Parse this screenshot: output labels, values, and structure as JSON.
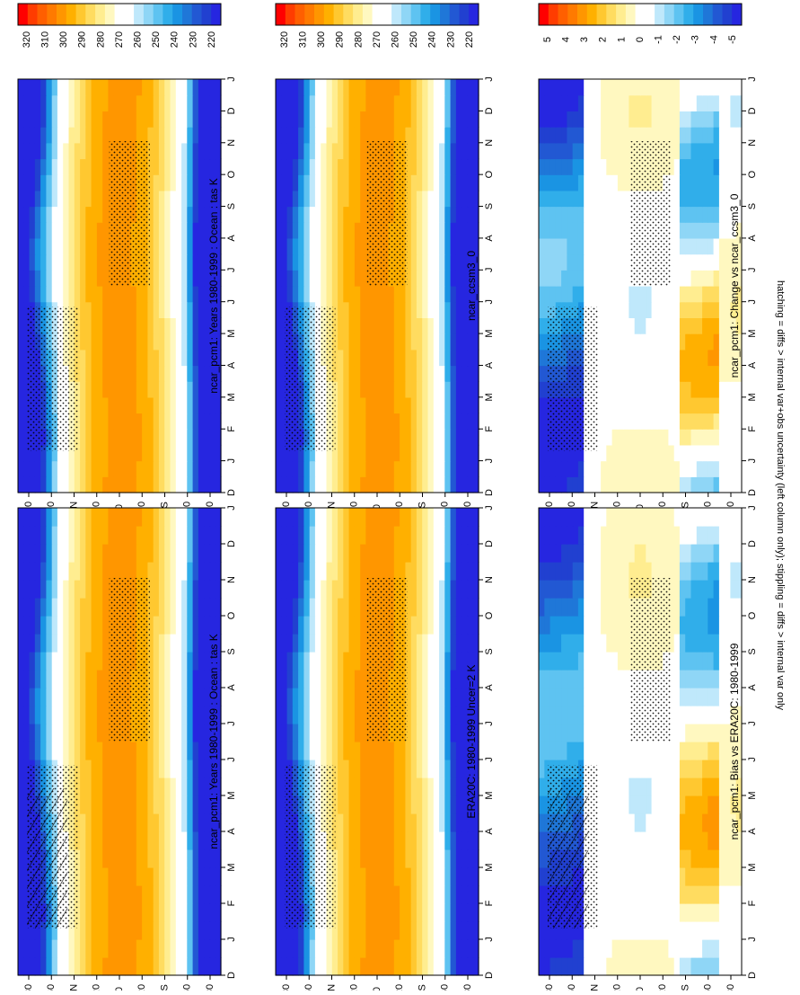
{
  "footnote": "hatching = diffs > internal var+obs uncertainty (left column only); stippling = diffs > internal var only",
  "abs_scale": {
    "labels": [
      "320",
      "310",
      "300",
      "290",
      "280",
      "270",
      "260",
      "250",
      "240",
      "230",
      "220"
    ],
    "colors": [
      "#ff0000",
      "#ff3c00",
      "#ff5f00",
      "#ff7a00",
      "#ff9600",
      "#ffb000",
      "#ffc830",
      "#ffdc60",
      "#ffed90",
      "#fff8c0",
      "#ffffff",
      "#ffffff",
      "#bfe8fb",
      "#8fd6f6",
      "#5ec3f1",
      "#30aeea",
      "#1a94e3",
      "#1f77d8",
      "#2258d3",
      "#2140d0",
      "#2626e0"
    ]
  },
  "diff_scale": {
    "labels": [
      "5",
      "4",
      "3",
      "2",
      "1",
      "0",
      "-1",
      "-2",
      "-3",
      "-4",
      "-5"
    ],
    "colors": [
      "#ff0000",
      "#ff3c00",
      "#ff5f00",
      "#ff7a00",
      "#ff9600",
      "#ffb000",
      "#ffc830",
      "#ffdc60",
      "#ffed90",
      "#fff8c0",
      "#ffffff",
      "#ffffff",
      "#bfe8fb",
      "#8fd6f6",
      "#5ec3f1",
      "#30aeea",
      "#1a94e3",
      "#1f77d8",
      "#2258d3",
      "#2140d0",
      "#2626e0"
    ]
  },
  "month_labels": [
    "D",
    "J",
    "F",
    "M",
    "A",
    "M",
    "J",
    "J",
    "A",
    "S",
    "O",
    "N",
    "D",
    "J"
  ],
  "lat_labels": [
    "80",
    "60",
    "°N",
    "20",
    "0",
    "20",
    "°S",
    "60",
    "80"
  ],
  "chart_data": [
    {
      "type": "heatmap",
      "title": "ncar_pcm1: Years 1980-1999 : Ocean : tas K",
      "x": [
        "D",
        "J",
        "F",
        "M",
        "A",
        "M",
        "J",
        "J",
        "A",
        "S",
        "O",
        "N",
        "D",
        "J"
      ],
      "y": [
        "80N",
        "60N",
        "40N",
        "20N",
        "0",
        "20S",
        "40S",
        "60S",
        "80S"
      ],
      "zlim": [
        220,
        320
      ],
      "units": "K",
      "colormap": "abs"
    },
    {
      "type": "heatmap",
      "title": "ncar_pcm1: Years 1980-1999 : Ocean : tas K",
      "x": [
        "D",
        "J",
        "F",
        "M",
        "A",
        "M",
        "J",
        "J",
        "A",
        "S",
        "O",
        "N",
        "D",
        "J"
      ],
      "y": [
        "80N",
        "60N",
        "40N",
        "20N",
        "0",
        "20S",
        "40S",
        "60S",
        "80S"
      ],
      "zlim": [
        220,
        320
      ],
      "units": "K",
      "colormap": "abs"
    },
    {
      "type": "heatmap",
      "title": "ERA20C: 1980-1999 Uncer=2 K",
      "x": [
        "D",
        "J",
        "F",
        "M",
        "A",
        "M",
        "J",
        "J",
        "A",
        "S",
        "O",
        "N",
        "D",
        "J"
      ],
      "y": [
        "80N",
        "60N",
        "40N",
        "20N",
        "0",
        "20S",
        "40S",
        "60S",
        "80S"
      ],
      "zlim": [
        220,
        320
      ],
      "units": "K",
      "colormap": "abs"
    },
    {
      "type": "heatmap",
      "title": "ncar_ccsm3_0",
      "x": [
        "D",
        "J",
        "F",
        "M",
        "A",
        "M",
        "J",
        "J",
        "A",
        "S",
        "O",
        "N",
        "D",
        "J"
      ],
      "y": [
        "80N",
        "60N",
        "40N",
        "20N",
        "0",
        "20S",
        "40S",
        "60S",
        "80S"
      ],
      "zlim": [
        220,
        320
      ],
      "units": "K",
      "colormap": "abs"
    },
    {
      "type": "heatmap",
      "title": "ncar_pcm1: Bias vs ERA20C: 1980-1999",
      "x": [
        "D",
        "J",
        "F",
        "M",
        "A",
        "M",
        "J",
        "J",
        "A",
        "S",
        "O",
        "N",
        "D",
        "J"
      ],
      "y": [
        "80N",
        "60N",
        "40N",
        "20N",
        "0",
        "20S",
        "40S",
        "60S",
        "80S"
      ],
      "zlim": [
        -5,
        5
      ],
      "units": "K",
      "colormap": "diff"
    },
    {
      "type": "heatmap",
      "title": "ncar_pcm1: Change vs ncar_ccsm3_0",
      "x": [
        "D",
        "J",
        "F",
        "M",
        "A",
        "M",
        "J",
        "J",
        "A",
        "S",
        "O",
        "N",
        "D",
        "J"
      ],
      "y": [
        "80N",
        "60N",
        "40N",
        "20N",
        "0",
        "20S",
        "40S",
        "60S",
        "80S"
      ],
      "zlim": [
        -5,
        5
      ],
      "units": "K",
      "colormap": "diff"
    }
  ]
}
